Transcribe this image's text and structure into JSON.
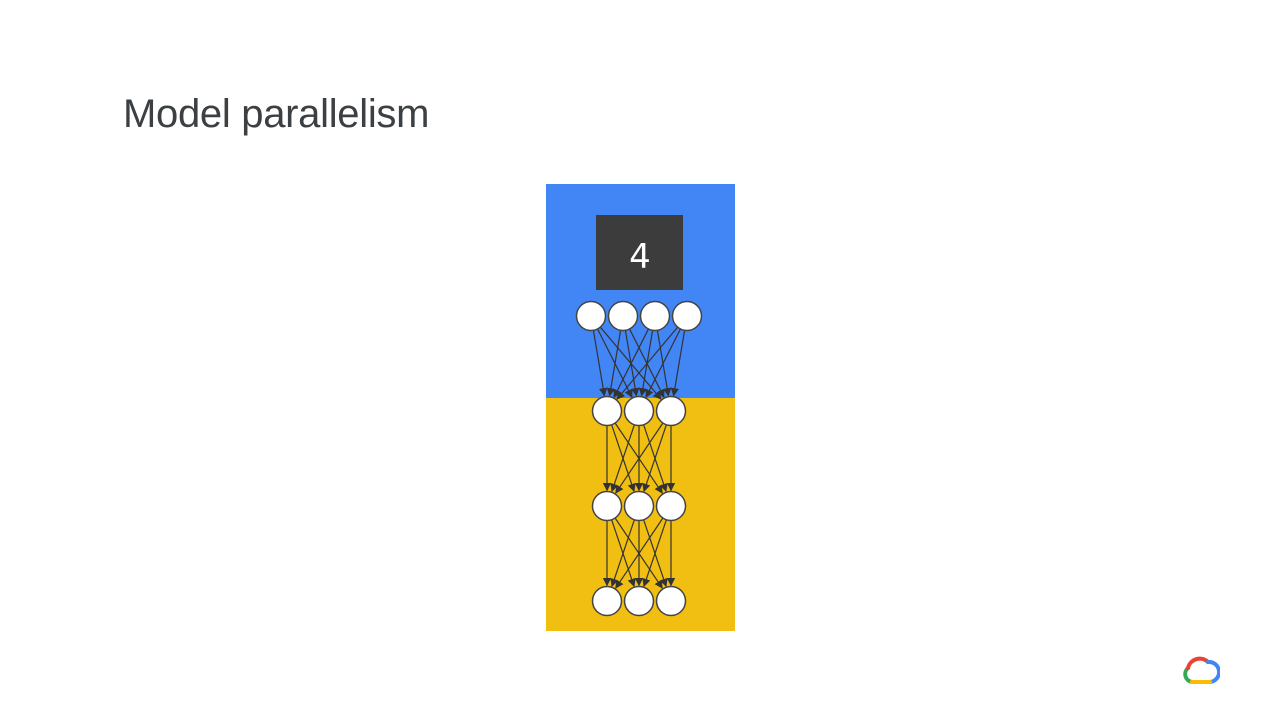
{
  "slide": {
    "title": "Model parallelism"
  },
  "diagram": {
    "input_digit": "4",
    "layer_sizes": [
      4,
      3,
      3,
      3
    ],
    "device_split_after_layer": 1,
    "colors": {
      "device_top": "#4285F4",
      "device_bottom": "#F1BE12",
      "input_box": "#3c3c3c",
      "node_fill": "#ffffff",
      "node_stroke": "#444444",
      "edge": "#333333"
    }
  },
  "logo": {
    "icon": "google-cloud-logo-icon"
  }
}
